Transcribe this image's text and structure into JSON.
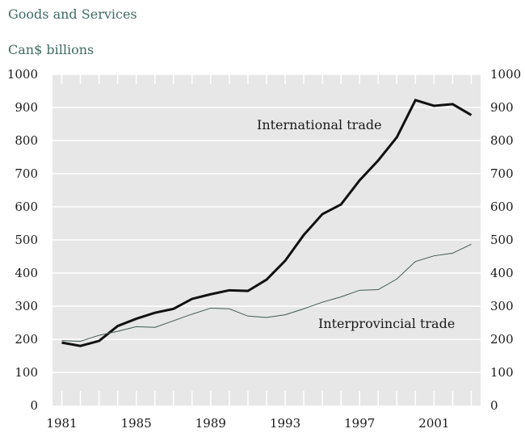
{
  "subtitle": "Goods and Services",
  "unit_label": "Can$ billions",
  "chart_data": {
    "type": "line",
    "x": [
      1981,
      1982,
      1983,
      1984,
      1985,
      1986,
      1987,
      1988,
      1989,
      1990,
      1991,
      1992,
      1993,
      1994,
      1995,
      1996,
      1997,
      1998,
      1999,
      2000,
      2001,
      2002,
      2003
    ],
    "series": [
      {
        "name": "International trade",
        "values": [
          190,
          180,
          195,
          240,
          262,
          280,
          292,
          322,
          336,
          348,
          346,
          380,
          437,
          515,
          578,
          607,
          680,
          740,
          810,
          922,
          905,
          910,
          877
        ]
      },
      {
        "name": "Interprovincial trade",
        "values": [
          196,
          194,
          212,
          224,
          238,
          236,
          256,
          276,
          294,
          292,
          270,
          266,
          274,
          292,
          312,
          328,
          348,
          350,
          382,
          435,
          452,
          460,
          487
        ]
      }
    ],
    "x_tick_labels": [
      "1981",
      "1985",
      "1989",
      "1993",
      "1997",
      "2001"
    ],
    "y_tick_labels": [
      "0",
      "100",
      "200",
      "300",
      "400",
      "500",
      "600",
      "700",
      "800",
      "900",
      "1000"
    ],
    "ylim": [
      0,
      1000
    ],
    "xlim": [
      1980.5,
      2003.5
    ],
    "colors": {
      "international": "#111111",
      "interprovincial": "#3c5a50",
      "grid": "#ffffff",
      "plot_bg": "#e7e7e7"
    }
  }
}
